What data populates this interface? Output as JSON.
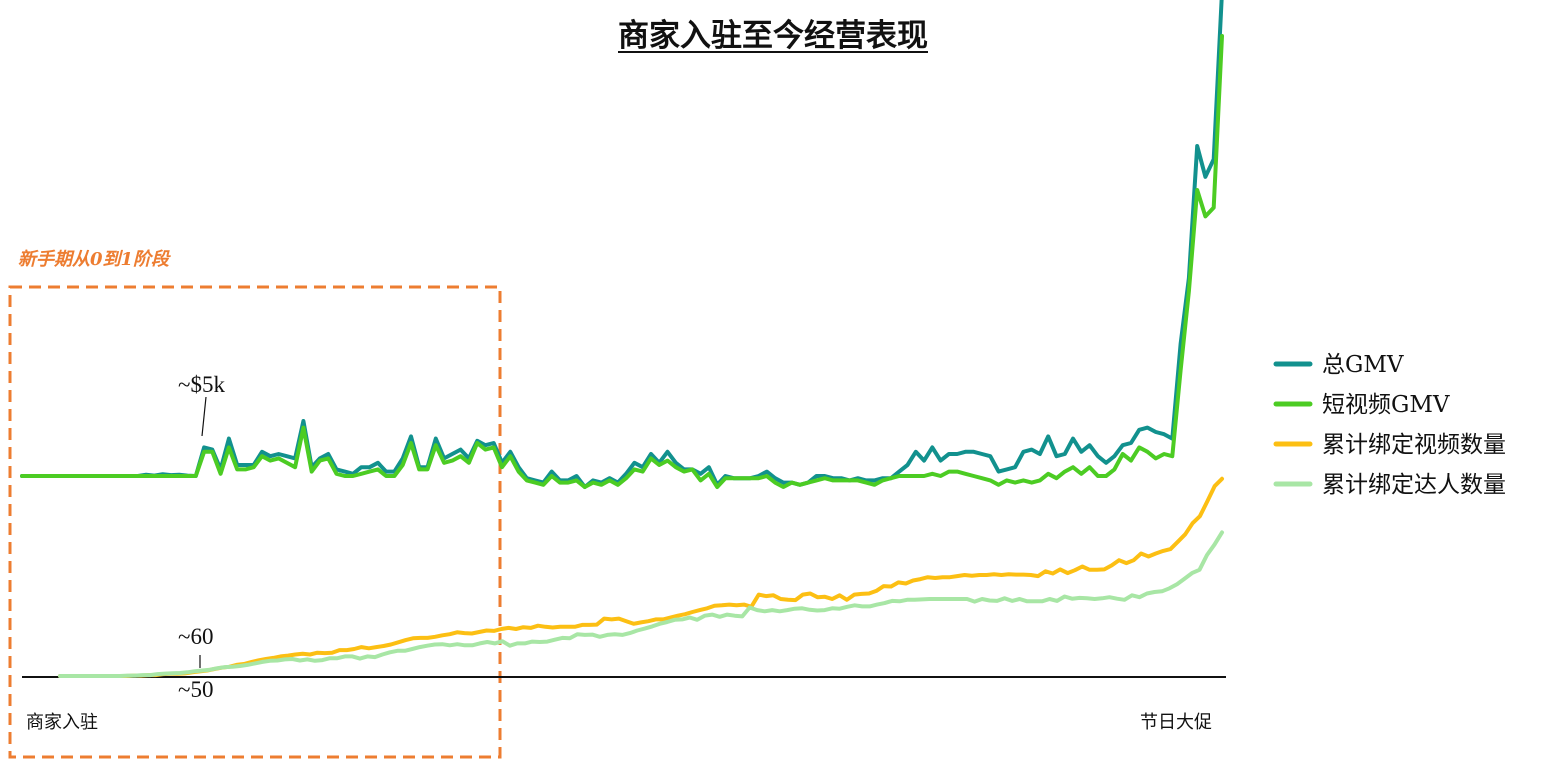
{
  "chart_data": {
    "type": "line",
    "title": "商家入驻至今经营表现",
    "x_start_label": "商家入驻",
    "x_end_label": "节日大促",
    "phase_label": "新手期从0到1阶段",
    "annotations": {
      "gmv_peak": "~$5k",
      "count_upper": "~60",
      "count_lower": "~50"
    },
    "legend_position": "right",
    "colors": {
      "phase": "#ed7d31",
      "axis": "#111111"
    },
    "series": [
      {
        "name": "总GMV",
        "color": "#12918e",
        "values": [
          45,
          45,
          45,
          45,
          45,
          45,
          45,
          45,
          45,
          45,
          45,
          45,
          45,
          45,
          45,
          45.3,
          45.1,
          45.4,
          45.2,
          45.3,
          45.1,
          45,
          51.5,
          51,
          46.5,
          53.5,
          47.5,
          47.5,
          47.5,
          50.5,
          49.5,
          50,
          49.5,
          49,
          57.5,
          47,
          49,
          50,
          46.5,
          46,
          45.5,
          47,
          47,
          48,
          46,
          46,
          49,
          54,
          47,
          47,
          53.5,
          49,
          50,
          51,
          49,
          53,
          52,
          52.5,
          48,
          50.5,
          47,
          44.5,
          44,
          43.5,
          46,
          44,
          44,
          45,
          42.5,
          44,
          43.5,
          44.5,
          43.5,
          45.5,
          48,
          47,
          50,
          48,
          50.5,
          48,
          46.5,
          46.5,
          45.5,
          47,
          43,
          45,
          44.5,
          44.5,
          44.5,
          45,
          46,
          44.5,
          43.5,
          43.5,
          43,
          43.5,
          45,
          45,
          44.5,
          44.5,
          44,
          44.5,
          44,
          44,
          44.5,
          44.5,
          46,
          47.5,
          50.5,
          48.5,
          51.5,
          48.5,
          50,
          50,
          50.5,
          50.5,
          50,
          49.5,
          46,
          46.5,
          47,
          50.5,
          51,
          50,
          54,
          49.5,
          50,
          53.5,
          50.5,
          52,
          49.5,
          48,
          49.5,
          52,
          52.5,
          55.5,
          56,
          55,
          54.5,
          53.5,
          75,
          90,
          120,
          113,
          117,
          155
        ]
      },
      {
        "name": "短视频GMV",
        "color": "#4ccc23",
        "values": [
          45,
          45,
          45,
          45,
          45,
          45,
          45,
          45,
          45,
          45,
          45,
          45,
          45,
          45,
          45,
          45,
          45,
          45,
          45,
          45,
          45,
          45,
          50.5,
          50.5,
          45.5,
          51.5,
          46.5,
          46.5,
          47,
          49.5,
          48.5,
          49,
          48,
          47,
          56,
          46,
          48.5,
          49,
          45.5,
          45,
          45,
          45.5,
          46,
          46.5,
          45,
          45,
          47.5,
          52.5,
          46.5,
          46.5,
          52,
          48,
          48.5,
          49.5,
          48,
          52.5,
          51,
          51.5,
          47,
          49.5,
          46,
          44,
          43.5,
          43,
          45,
          43.5,
          43.5,
          44,
          42.5,
          43.5,
          43,
          44,
          43,
          44.5,
          46.5,
          46,
          49,
          47.5,
          48.5,
          47,
          46,
          46.5,
          44,
          45.5,
          42.5,
          44.5,
          44.5,
          44.5,
          44.5,
          44.5,
          45,
          43.5,
          42.5,
          43.5,
          43,
          43.5,
          44,
          44.5,
          44,
          44,
          44,
          44,
          43.5,
          43,
          44,
          44.5,
          45,
          45,
          45,
          45,
          45.5,
          45,
          46,
          46,
          45.5,
          45,
          44.5,
          44,
          43,
          44,
          43.5,
          44,
          43.5,
          44,
          45.5,
          44.5,
          46,
          47,
          45.5,
          47,
          45,
          45,
          46.5,
          50,
          48.5,
          51.5,
          50.5,
          49,
          50,
          49.5,
          69,
          87,
          110,
          104,
          106,
          145
        ]
      },
      {
        "name": "累计绑定视频数量",
        "color": "#fcbf13",
        "values": [
          0,
          0,
          0,
          0,
          0,
          0,
          0,
          0,
          0,
          0,
          0.2,
          0.2,
          0.5,
          0.5,
          1,
          1.2,
          1.2,
          1.4,
          2,
          2.5,
          3,
          3.8,
          4.5,
          5,
          6,
          6.5,
          7.5,
          8.5,
          9.2,
          9.8,
          10.6,
          11,
          11.6,
          12,
          11.6,
          12.6,
          12.4,
          12.6,
          14,
          14,
          14.6,
          15.6,
          15,
          15.6,
          16.2,
          17,
          18.2,
          19.4,
          20.4,
          20.6,
          20.6,
          21.2,
          22,
          22.6,
          23.6,
          23.2,
          23,
          23.8,
          24.6,
          24.4,
          25.4,
          26,
          25.4,
          26.4,
          26,
          27.2,
          26.6,
          26.2,
          26.6,
          26.6,
          26.6,
          27.6,
          27.6,
          27.8,
          31,
          30.6,
          31,
          29.6,
          28.2,
          29,
          29.6,
          30.6,
          30.6,
          31.6,
          32.6,
          33.4,
          34.6,
          35.6,
          36.6,
          38,
          38.2,
          38.6,
          38.2,
          38.6,
          37.4,
          44,
          43.2,
          43.6,
          41.6,
          41.2,
          41,
          44,
          44.6,
          42.6,
          42.8,
          41.6,
          43.6,
          41.2,
          44,
          44.4,
          44.6,
          46,
          48.6,
          48.4,
          50.6,
          50,
          51.6,
          52.4,
          53.4,
          53,
          53.4,
          53.4,
          54,
          54.6,
          54.2,
          54.6,
          54.6,
          55,
          54.6,
          55,
          54.8,
          54.8,
          54.6,
          54,
          56.6,
          55.4,
          57.6,
          55.6,
          57.2,
          59.2,
          57.4,
          57.4,
          57.6,
          59.8,
          62.6,
          61,
          62.6,
          66.2,
          64.6,
          66.2,
          67.6,
          68.6,
          72.6,
          76.6,
          82.6,
          86.4,
          94.4,
          102.6,
          106.6
        ]
      },
      {
        "name": "累计绑定达人数量",
        "color": "#a8e6a5",
        "values": [
          0,
          0,
          0,
          0,
          0,
          0,
          0,
          0,
          0,
          0.2,
          0.2,
          0.5,
          0.5,
          1,
          1.3,
          1.5,
          1.6,
          2,
          2.6,
          3,
          3.4,
          4.2,
          4.8,
          5,
          5.4,
          6,
          6.8,
          7.6,
          8.2,
          8.4,
          9,
          9.2,
          8.4,
          9,
          8.2,
          8.6,
          9.6,
          9.6,
          10.6,
          10.6,
          9.4,
          10.6,
          10.2,
          11.6,
          12.8,
          13.6,
          13.6,
          14.6,
          15.6,
          16.4,
          17,
          17.2,
          16.6,
          17.2,
          16.6,
          16.6,
          17.6,
          18.4,
          17.6,
          18.8,
          16.4,
          17.6,
          17.6,
          18.6,
          18.4,
          18.6,
          19.6,
          20.6,
          20.4,
          22.6,
          22.2,
          22.4,
          21.2,
          22.2,
          22.6,
          22.2,
          23.2,
          24.6,
          25.6,
          26.8,
          28.2,
          29.2,
          30.4,
          30.6,
          31.6,
          30.4,
          32.6,
          33.2,
          32,
          33.2,
          32.6,
          32.2,
          37,
          35.6,
          35,
          35.6,
          35,
          35.6,
          36.4,
          36.6,
          35.8,
          35.4,
          35.6,
          36.6,
          36.4,
          37.4,
          38.2,
          37.6,
          37.6,
          38.6,
          39.4,
          40.6,
          40.4,
          41.2,
          41.2,
          41.4,
          41.6,
          41.6,
          41.6,
          41.6,
          41.6,
          41.6,
          40.2,
          41.6,
          40.8,
          40.6,
          42,
          40.6,
          41.6,
          40.4,
          40.4,
          40.4,
          41.6,
          40.6,
          43,
          41.8,
          42.2,
          42,
          41.6,
          42,
          42.6,
          41.8,
          41.2,
          43.6,
          42.6,
          44.6,
          45.4,
          45.8,
          47.4,
          49.6,
          52.6,
          55.6,
          57.4,
          65.4,
          71,
          77.6
        ]
      }
    ]
  }
}
